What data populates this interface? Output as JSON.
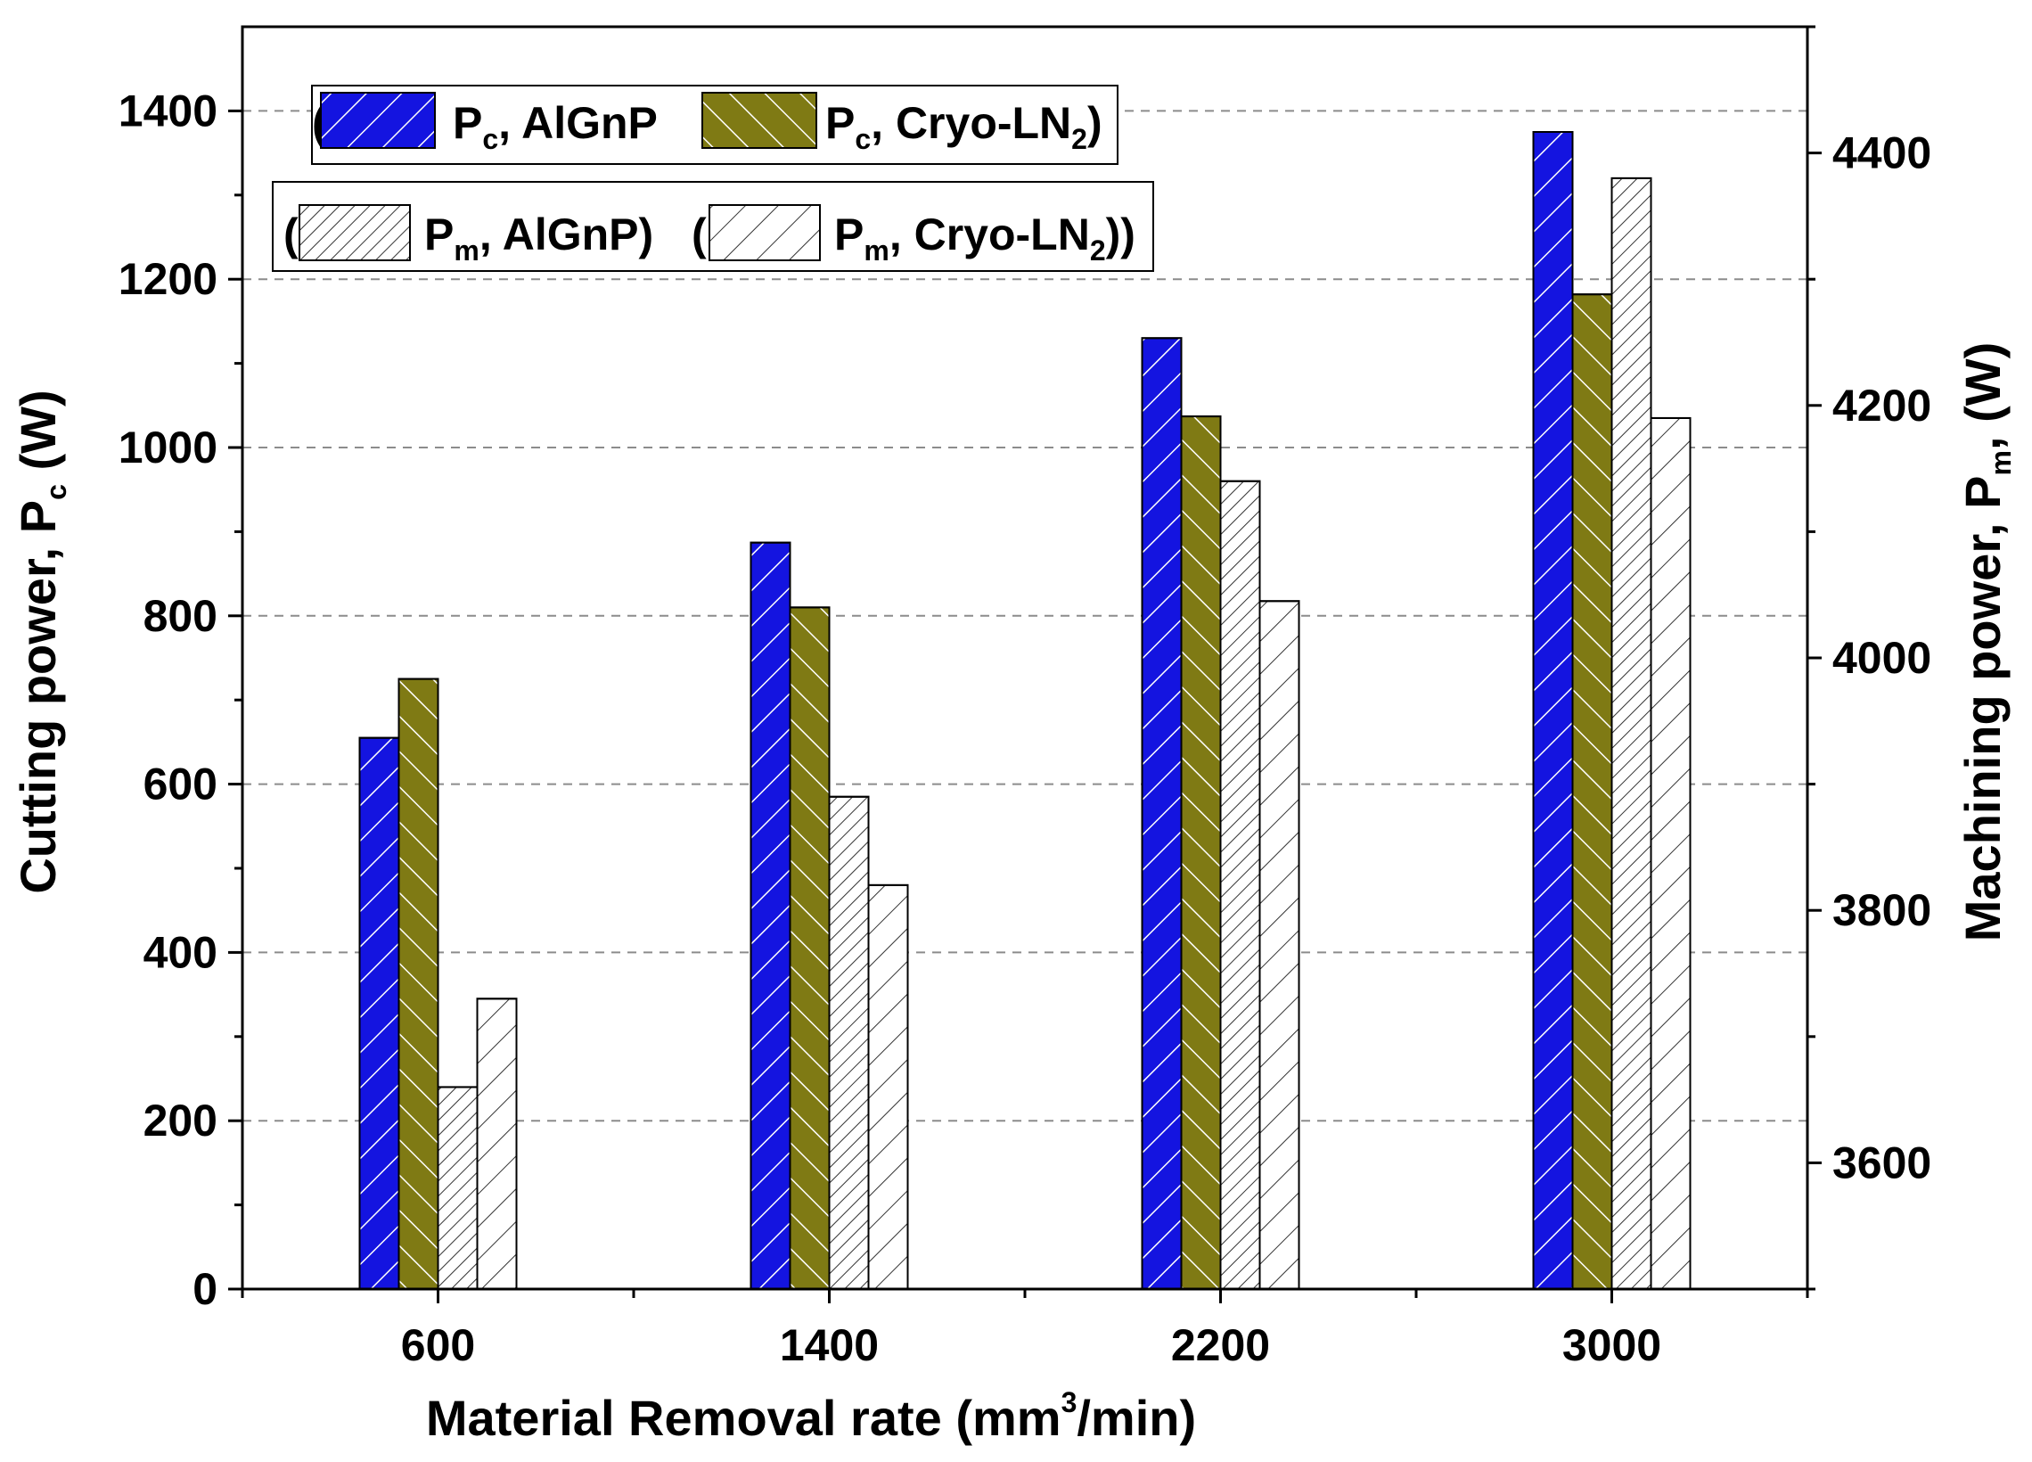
{
  "chart_data": {
    "type": "bar",
    "title": "",
    "xlabel": "Material Removal rate (mm³/min)",
    "xlabel_parts": {
      "main": "Material Removal rate (mm",
      "sup": "3",
      "tail": "/min)"
    },
    "ylabel": "Cutting power, Pc (W)",
    "ylabel_parts": {
      "main": "Cutting power, P",
      "sub": "c",
      "tail": " (W)"
    },
    "y2label": "Machining power, Pm, (W)",
    "y2label_parts": {
      "main": "Machining power, P",
      "sub": "m",
      "tail": ", (W)"
    },
    "categories": [
      "600",
      "1400",
      "2200",
      "3000"
    ],
    "ylim": [
      0,
      1500
    ],
    "yticks": [
      0,
      200,
      400,
      600,
      800,
      1000,
      1200,
      1400
    ],
    "ytick_labels": [
      "0",
      "200",
      "400",
      "600",
      "800",
      "1000",
      "1200",
      "1400"
    ],
    "y2lim": [
      3500,
      4500
    ],
    "y2ticks": [
      3600,
      3800,
      4000,
      4200,
      4400
    ],
    "y2tick_labels": [
      "3600",
      "3800",
      "4000",
      "4200",
      "4400"
    ],
    "grid": true,
    "legend": [
      {
        "row": 1,
        "paren_left": "(",
        "label": "P",
        "sub": "c",
        "tail": ", AlGnP",
        "paren_right": "",
        "series": 0
      },
      {
        "row": 1,
        "paren_left": "",
        "label": "P",
        "sub": "c",
        "tail": ", Cryo-LN",
        "sub2": "2",
        "paren_right": ")",
        "series": 1
      },
      {
        "row": 2,
        "paren_left": "(",
        "label": "P",
        "sub": "m",
        "tail": ", AlGnP)",
        "paren_right": "",
        "series": 2
      },
      {
        "row": 2,
        "paren_left": "(",
        "label": "P",
        "sub": "m",
        "tail": ", Cryo-LN",
        "sub2": "2",
        "paren_right": "))",
        "series": 3
      }
    ],
    "series": [
      {
        "name": "Pc, AlGnP",
        "axis": "left",
        "color": "#1414e0",
        "hatch": "white-diag-up",
        "values": [
          655,
          887,
          1130,
          1375
        ]
      },
      {
        "name": "Pc, Cryo-LN2",
        "axis": "left",
        "color": "#7f7a14",
        "hatch": "white-diag-down",
        "values": [
          725,
          810,
          1037,
          1182
        ]
      },
      {
        "name": "Pm, AlGnP",
        "axis": "right",
        "color": "#ffffff",
        "hatch": "dense-diag",
        "values": [
          3660,
          3890,
          4140,
          4380
        ]
      },
      {
        "name": "Pm, Cryo-LN2",
        "axis": "right",
        "color": "#ffffff",
        "hatch": "sparse-diag",
        "values": [
          3730,
          3820,
          4045,
          4190
        ]
      }
    ]
  }
}
